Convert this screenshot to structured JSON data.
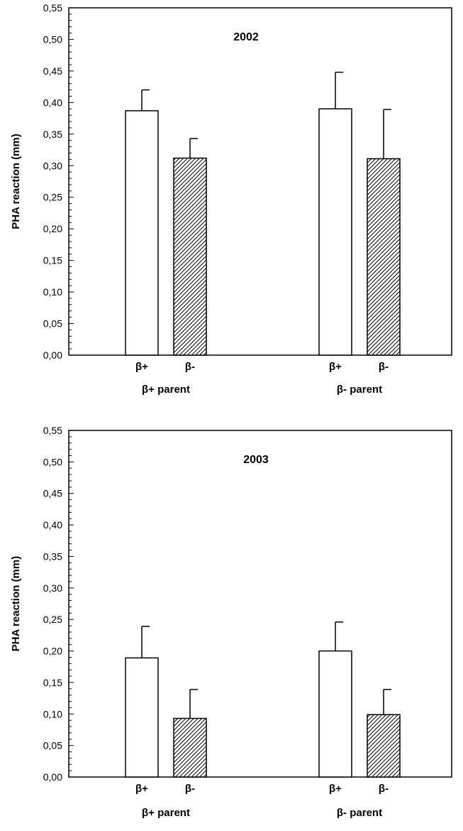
{
  "chart_data": [
    {
      "type": "bar",
      "title": "2002",
      "ylabel": "PHA reaction  (mm)",
      "ylim": [
        0,
        0.55
      ],
      "ytick_labels": [
        "0,00",
        "0,05",
        "0,10",
        "0,15",
        "0,20",
        "0,25",
        "0,30",
        "0,35",
        "0,40",
        "0,45",
        "0,50",
        "0,55"
      ],
      "groups": [
        {
          "label": "β+ parent",
          "bars": [
            {
              "label": "β+",
              "value": 0.387,
              "error": 0.033,
              "fill": "white"
            },
            {
              "label": "β-",
              "value": 0.312,
              "error": 0.031,
              "fill": "hatched"
            }
          ]
        },
        {
          "label": "β- parent",
          "bars": [
            {
              "label": "β+",
              "value": 0.39,
              "error": 0.058,
              "fill": "white"
            },
            {
              "label": "β-",
              "value": 0.311,
              "error": 0.078,
              "fill": "hatched"
            }
          ]
        }
      ]
    },
    {
      "type": "bar",
      "title": "2003",
      "ylabel": "PHA reaction  (mm)",
      "ylim": [
        0,
        0.55
      ],
      "ytick_labels": [
        "0,00",
        "0,05",
        "0,10",
        "0,15",
        "0,20",
        "0,25",
        "0,30",
        "0,35",
        "0,40",
        "0,45",
        "0,50",
        "0,55"
      ],
      "groups": [
        {
          "label": "β+ parent",
          "bars": [
            {
              "label": "β+",
              "value": 0.189,
              "error": 0.05,
              "fill": "white"
            },
            {
              "label": "β-",
              "value": 0.093,
              "error": 0.046,
              "fill": "hatched"
            }
          ]
        },
        {
          "label": "β- parent",
          "bars": [
            {
              "label": "β+",
              "value": 0.2,
              "error": 0.046,
              "fill": "white"
            },
            {
              "label": "β-",
              "value": 0.099,
              "error": 0.04,
              "fill": "hatched"
            }
          ]
        }
      ]
    }
  ]
}
